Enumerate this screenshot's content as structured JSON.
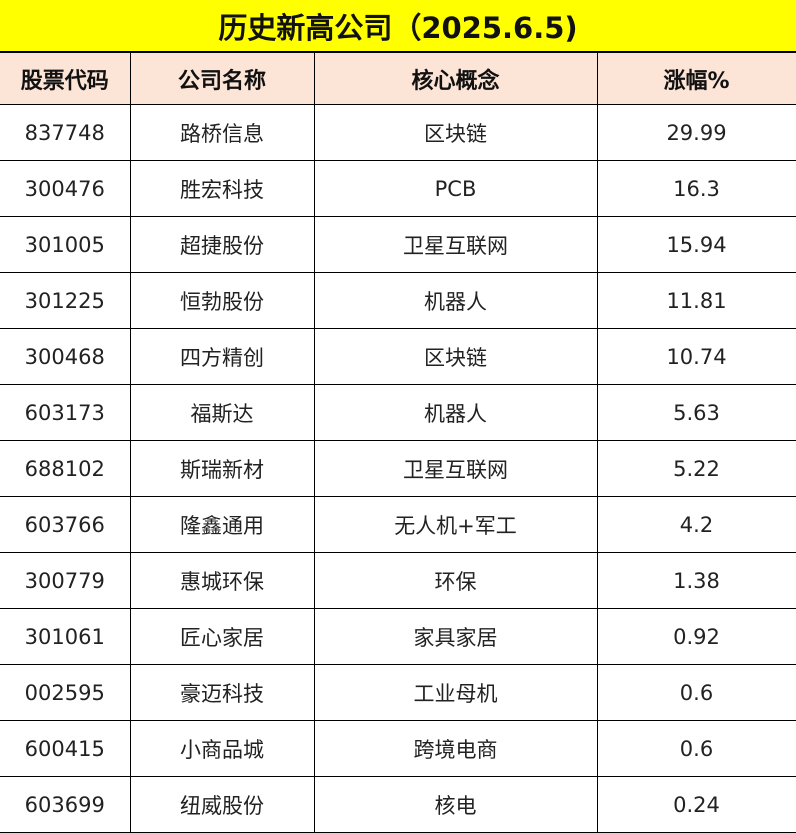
{
  "title": "历史新高公司（2025.6.5)",
  "colors": {
    "title_bg": "#FFFF00",
    "header_bg": "#FCE4D6"
  },
  "headers": [
    "股票代码",
    "公司名称",
    "核心概念",
    "涨幅%"
  ],
  "rows": [
    [
      "837748",
      "路桥信息",
      "区块链",
      "29.99"
    ],
    [
      "300476",
      "胜宏科技",
      "PCB",
      "16.3"
    ],
    [
      "301005",
      "超捷股份",
      "卫星互联网",
      "15.94"
    ],
    [
      "301225",
      "恒勃股份",
      "机器人",
      "11.81"
    ],
    [
      "300468",
      "四方精创",
      "区块链",
      "10.74"
    ],
    [
      "603173",
      "福斯达",
      "机器人",
      "5.63"
    ],
    [
      "688102",
      "斯瑞新材",
      "卫星互联网",
      "5.22"
    ],
    [
      "603766",
      "隆鑫通用",
      "无人机+军工",
      "4.2"
    ],
    [
      "300779",
      "惠城环保",
      "环保",
      "1.38"
    ],
    [
      "301061",
      "匠心家居",
      "家具家居",
      "0.92"
    ],
    [
      "002595",
      "豪迈科技",
      "工业母机",
      "0.6"
    ],
    [
      "600415",
      "小商品城",
      "跨境电商",
      "0.6"
    ],
    [
      "603699",
      "纽威股份",
      "核电",
      "0.24"
    ]
  ]
}
